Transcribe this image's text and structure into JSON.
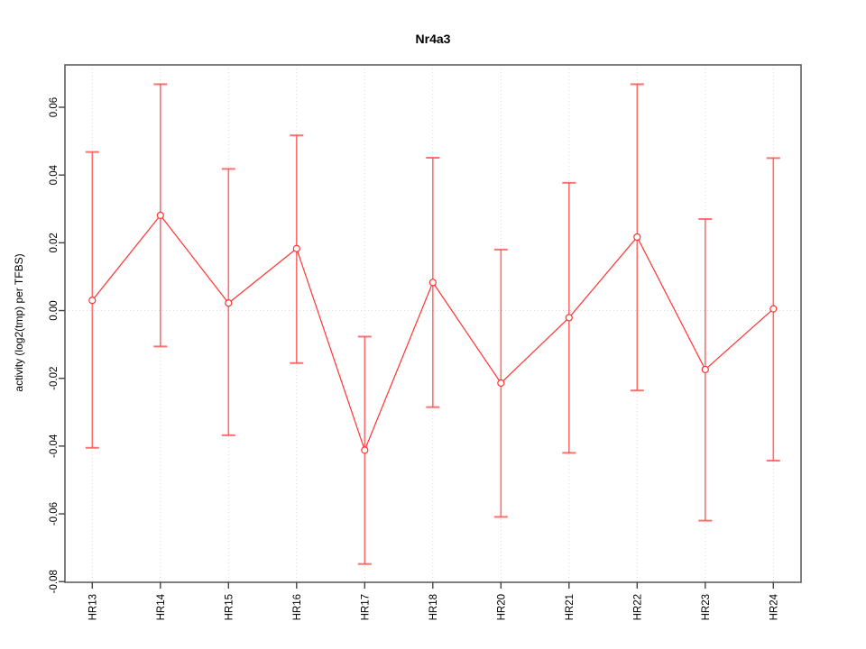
{
  "chart_data": {
    "type": "line",
    "title": "Nr4a3",
    "xlabel": "",
    "ylabel": "activity (log2(tmp) per TFBS)",
    "categories": [
      "HR13",
      "HR14",
      "HR15",
      "HR16",
      "HR17",
      "HR18",
      "HR20",
      "HR21",
      "HR22",
      "HR23",
      "HR24"
    ],
    "series": [
      {
        "name": "activity",
        "values": [
          0.003,
          0.0281,
          0.0022,
          0.0183,
          -0.0412,
          0.0083,
          -0.0214,
          -0.0021,
          0.0217,
          -0.0174,
          0.0005
        ],
        "lower": [
          -0.0405,
          -0.0106,
          -0.0368,
          -0.0155,
          -0.0748,
          -0.0285,
          -0.0609,
          -0.042,
          -0.0236,
          -0.062,
          -0.0443
        ],
        "upper": [
          0.0468,
          0.0668,
          0.0418,
          0.0517,
          -0.0077,
          0.0451,
          0.018,
          0.0377,
          0.0668,
          0.027,
          0.045
        ]
      }
    ],
    "ytick_values": [
      -0.08,
      -0.06,
      -0.04,
      -0.02,
      0.0,
      0.02,
      0.04,
      0.06
    ],
    "ytick_labels": [
      "-0.08",
      "-0.06",
      "-0.04",
      "-0.02",
      "0.00",
      "0.02",
      "0.04",
      "0.06"
    ],
    "ylim": [
      -0.0802,
      0.0725
    ],
    "legend": null,
    "grid": {
      "vertical": "per-category-dotted",
      "horizontal_at_zero": true
    },
    "marker": "open-circle",
    "colors": {
      "series": "#ff3333",
      "errorbar": "#ff4d4d",
      "grid": "#d9d9d9",
      "axis_box": "#5f5f5f",
      "tick": "#444444",
      "text": "#000000",
      "background": "#ffffff"
    }
  }
}
